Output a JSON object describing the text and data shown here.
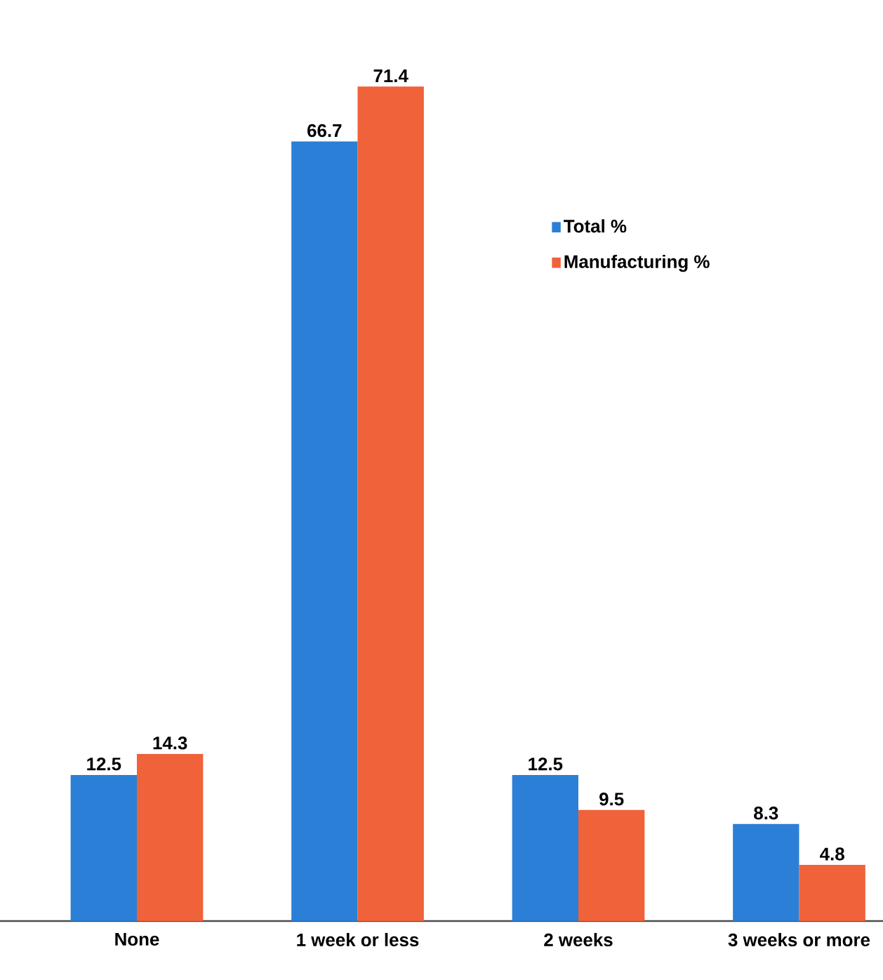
{
  "chart_data": {
    "type": "bar",
    "categories": [
      "None",
      "1 week or less",
      "2 weeks",
      "3 weeks or more"
    ],
    "series": [
      {
        "name": "Total %",
        "color": "#2b7fd6",
        "values": [
          12.5,
          66.7,
          12.5,
          8.3
        ]
      },
      {
        "name": "Manufacturing %",
        "color": "#f0623a",
        "values": [
          14.3,
          71.4,
          9.5,
          4.8
        ]
      }
    ],
    "data_labels": true,
    "legend": "top right"
  }
}
